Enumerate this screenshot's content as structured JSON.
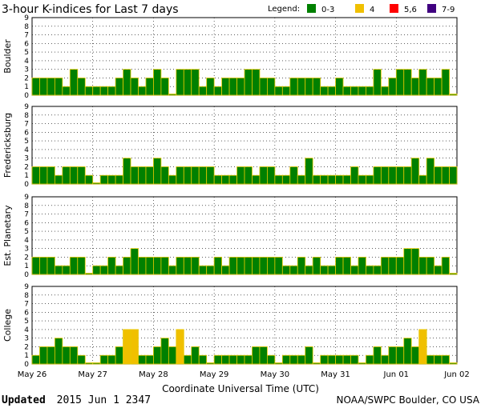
{
  "chart_data": {
    "type": "bar",
    "title": "3-hour K-indices for Last 7 days",
    "xlabel": "Coordinate Universal Time (UTC)",
    "ylim": [
      0,
      9
    ],
    "yticks": [
      "0",
      "1",
      "2",
      "3",
      "4",
      "5",
      "6",
      "7",
      "8",
      "9"
    ],
    "x_tick_labels": [
      "May 26",
      "May 27",
      "May 28",
      "May 29",
      "May 30",
      "May 31",
      "Jun 01",
      "Jun 02"
    ],
    "legend": {
      "label": "Legend:",
      "entries": [
        {
          "label": "0-3",
          "color": "#008000"
        },
        {
          "label": "4",
          "color": "#f0c000"
        },
        {
          "label": "5,6",
          "color": "#ff0000"
        },
        {
          "label": "7-9",
          "color": "#400080"
        }
      ]
    },
    "panels": [
      {
        "name": "Boulder",
        "values": [
          2,
          2,
          2,
          2,
          1,
          3,
          2,
          1,
          1,
          1,
          1,
          2,
          3,
          2,
          1,
          2,
          3,
          2,
          0,
          3,
          3,
          3,
          1,
          2,
          1,
          2,
          2,
          2,
          3,
          3,
          2,
          2,
          1,
          1,
          2,
          2,
          2,
          2,
          1,
          1,
          2,
          1,
          1,
          1,
          1,
          3,
          1,
          2,
          3,
          3,
          2,
          3,
          2,
          2,
          3,
          0
        ]
      },
      {
        "name": "Fredericksburg",
        "values": [
          2,
          2,
          2,
          1,
          2,
          2,
          2,
          1,
          0,
          1,
          1,
          1,
          3,
          2,
          2,
          2,
          3,
          2,
          1,
          2,
          2,
          2,
          2,
          2,
          1,
          1,
          1,
          2,
          2,
          1,
          2,
          2,
          1,
          1,
          2,
          1,
          3,
          1,
          1,
          1,
          1,
          1,
          2,
          1,
          1,
          2,
          2,
          2,
          2,
          2,
          3,
          1,
          3,
          2,
          2,
          2
        ]
      },
      {
        "name": "Est. Planetary",
        "values": [
          2,
          2,
          2,
          1,
          1,
          2,
          2,
          0,
          1,
          1,
          2,
          1,
          2,
          3,
          2,
          2,
          2,
          2,
          1,
          2,
          2,
          2,
          1,
          1,
          2,
          1,
          2,
          2,
          2,
          2,
          2,
          2,
          2,
          1,
          1,
          2,
          1,
          2,
          1,
          1,
          2,
          2,
          1,
          2,
          1,
          1,
          2,
          2,
          2,
          3,
          3,
          2,
          2,
          1,
          2,
          0
        ]
      },
      {
        "name": "College",
        "values": [
          1,
          2,
          2,
          3,
          2,
          2,
          1,
          0,
          0,
          1,
          1,
          2,
          4,
          4,
          1,
          1,
          2,
          3,
          2,
          4,
          1,
          2,
          1,
          0,
          1,
          1,
          1,
          1,
          1,
          2,
          2,
          1,
          0,
          1,
          1,
          1,
          2,
          0,
          1,
          1,
          1,
          1,
          1,
          0,
          1,
          2,
          1,
          2,
          2,
          3,
          2,
          4,
          1,
          1,
          1,
          0
        ]
      }
    ]
  },
  "footer": {
    "updated_label": "Updated",
    "updated_value": "2015 Jun  1 2347",
    "source": "NOAA/SWPC Boulder, CO USA"
  }
}
